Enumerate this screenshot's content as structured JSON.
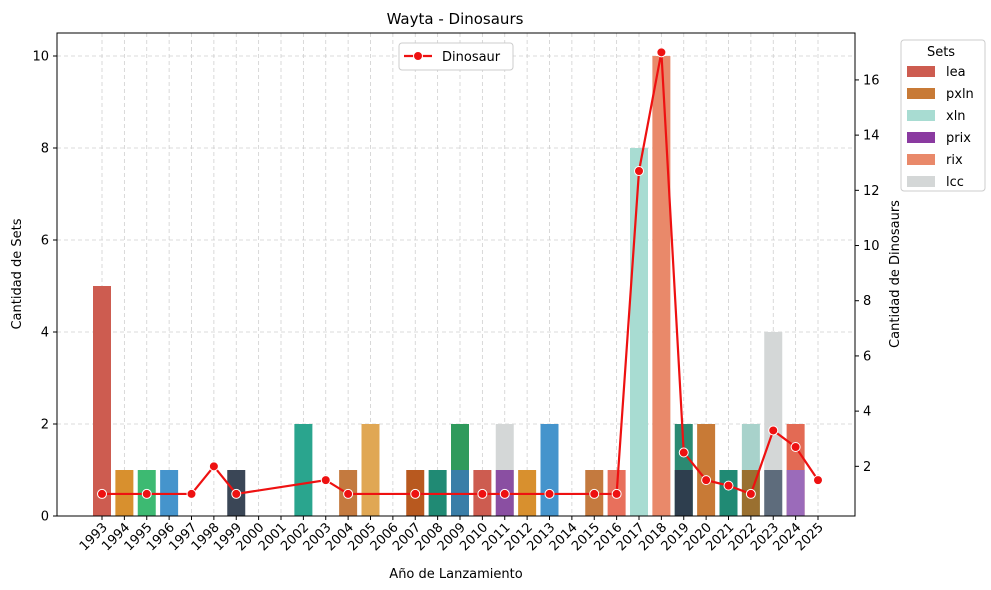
{
  "chart_data": {
    "type": "bar",
    "title": "Wayta - Dinosaurs",
    "xlabel": "Año de Lanzamiento",
    "ylabel": "Cantidad de Sets",
    "y2label": "Cantidad de Dinosaurs",
    "ylim": [
      0,
      10.5
    ],
    "y2lim": [
      0.2,
      17.7
    ],
    "yticks": [
      0,
      2,
      4,
      6,
      8,
      10
    ],
    "y2ticks": [
      2,
      4,
      6,
      8,
      10,
      12,
      14,
      16
    ],
    "grid": true,
    "categories": [
      "1993",
      "1994",
      "1995",
      "1996",
      "1997",
      "1998",
      "1999",
      "2000",
      "2001",
      "2002",
      "2003",
      "2004",
      "2005",
      "2006",
      "2007",
      "2008",
      "2009",
      "2010",
      "2011",
      "2012",
      "2013",
      "2014",
      "2015",
      "2016",
      "2017",
      "2018",
      "2019",
      "2020",
      "2021",
      "2022",
      "2023",
      "2024",
      "2025"
    ],
    "bars": [
      {
        "year": "1993",
        "value": 5,
        "color": "#cd5c50"
      },
      {
        "year": "1994",
        "value": 1,
        "color": "#d8902e"
      },
      {
        "year": "1995",
        "value": 1,
        "color": "#3dba72"
      },
      {
        "year": "1996",
        "value": 1,
        "color": "#4594cc"
      },
      {
        "year": "1999",
        "value": 1,
        "color": "#3a4656"
      },
      {
        "year": "2002",
        "value": 2,
        "color": "#2aa58e"
      },
      {
        "year": "2004",
        "value": 1,
        "color": "#c47a3f"
      },
      {
        "year": "2005",
        "value": 2,
        "color": "#e0a754"
      },
      {
        "year": "2007",
        "value": 1,
        "color": "#b8591f"
      },
      {
        "year": "2008",
        "value": 1,
        "color": "#208a74"
      },
      {
        "year": "2009",
        "value": 2,
        "color": "#2f9a5c"
      },
      {
        "year": "2009",
        "value": 1,
        "color": "#3a7ea8"
      },
      {
        "year": "2010",
        "value": 1,
        "color": "#cd5c50"
      },
      {
        "year": "2011",
        "value": 2,
        "color": "#d4d7d7"
      },
      {
        "year": "2011",
        "value": 1,
        "color": "#8a4fa2"
      },
      {
        "year": "2012",
        "value": 1,
        "color": "#d8902e"
      },
      {
        "year": "2013",
        "value": 2,
        "color": "#4594cc"
      },
      {
        "year": "2015",
        "value": 1,
        "color": "#c47a3f"
      },
      {
        "year": "2016",
        "value": 1,
        "color": "#e8705c"
      },
      {
        "year": "2017",
        "value": 8,
        "color": "#a8dcd2"
      },
      {
        "year": "2018",
        "value": 10,
        "color": "#e9896a"
      },
      {
        "year": "2019",
        "value": 2,
        "color": "#2b8a72"
      },
      {
        "year": "2019",
        "value": 1,
        "color": "#2e3e4e"
      },
      {
        "year": "2020",
        "value": 2,
        "color": "#c87a36"
      },
      {
        "year": "2021",
        "value": 1,
        "color": "#208a74"
      },
      {
        "year": "2022",
        "value": 2,
        "color": "#a8d2cb"
      },
      {
        "year": "2022",
        "value": 1,
        "color": "#9a7030"
      },
      {
        "year": "2023",
        "value": 4,
        "color": "#d4d7d7"
      },
      {
        "year": "2023",
        "value": 1,
        "color": "#5e6c7c"
      },
      {
        "year": "2024",
        "value": 2,
        "color": "#e36a54"
      },
      {
        "year": "2024",
        "value": 1,
        "color": "#9b6bba"
      }
    ],
    "line": {
      "name": "Dinosaur",
      "color": "#ee1111",
      "x": [
        "1993",
        "1995",
        "1997",
        "1998",
        "1999",
        "2003",
        "2004",
        "2007",
        "2010",
        "2011",
        "2013",
        "2015",
        "2016",
        "2017",
        "2018",
        "2019",
        "2020",
        "2021",
        "2022",
        "2023",
        "2024",
        "2025"
      ],
      "values": [
        1,
        1,
        1,
        2,
        1,
        1.5,
        1,
        1,
        1,
        1,
        1,
        1,
        1,
        12.7,
        17,
        2.5,
        1.5,
        1.3,
        1,
        3.3,
        2.7,
        1.5
      ]
    },
    "legend_line": {
      "position": "top-center",
      "label": "Dinosaur"
    },
    "legend_sets": {
      "position": "outside-right",
      "title": "Sets",
      "items": [
        {
          "label": "lea",
          "color": "#cd5c50"
        },
        {
          "label": "pxln",
          "color": "#c87a36"
        },
        {
          "label": "xln",
          "color": "#a8dcd2"
        },
        {
          "label": "prix",
          "color": "#8a3aa0"
        },
        {
          "label": "rix",
          "color": "#e9896a"
        },
        {
          "label": "lcc",
          "color": "#d4d7d7"
        }
      ]
    }
  }
}
